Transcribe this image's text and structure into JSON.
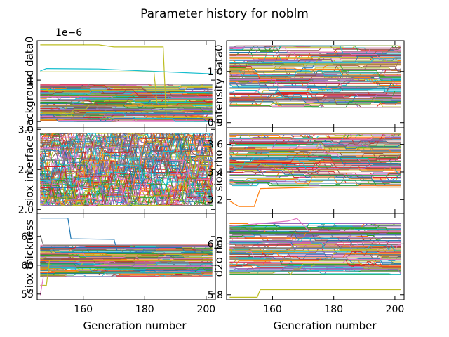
{
  "title": "Parameter history for noblm",
  "xlabel": "Generation number",
  "series_colors": [
    "#1f77b4",
    "#ff7f0e",
    "#2ca02c",
    "#d62728",
    "#9467bd",
    "#8c564b",
    "#e377c2",
    "#7f7f7f",
    "#bcbd22",
    "#17becf"
  ],
  "chart_data": [
    {
      "type": "line",
      "panel": "top-left",
      "ylabel": "background data0",
      "offset_label": "1e−6",
      "xlim": [
        145,
        203
      ],
      "ylim": [
        -0.15,
        1.95
      ],
      "xticks": [
        160,
        180,
        200
      ],
      "xtick_labels": [
        "",
        "",
        ""
      ],
      "yticks": [
        0,
        1
      ],
      "ytick_labels": [
        "0",
        "1"
      ],
      "n_series": 120,
      "band": {
        "min": 0.0,
        "max": 0.9
      },
      "highlight_series": [
        {
          "color": "#bcbd22",
          "values": [
            [
              146,
              1.85
            ],
            [
              165,
              1.85
            ],
            [
              170,
              1.8
            ],
            [
              186,
              1.8
            ],
            [
              187,
              0.1
            ],
            [
              202,
              0.1
            ]
          ]
        },
        {
          "color": "#17becf",
          "values": [
            [
              146,
              1.22
            ],
            [
              148,
              1.28
            ],
            [
              165,
              1.27
            ],
            [
              202,
              1.15
            ]
          ]
        },
        {
          "color": "#bcbd22",
          "values": [
            [
              146,
              1.2
            ],
            [
              183,
              1.2
            ],
            [
              184,
              0.45
            ],
            [
              202,
              0.45
            ]
          ]
        }
      ]
    },
    {
      "type": "line",
      "panel": "top-right",
      "ylabel": "intensity data0",
      "xlim": [
        145,
        203
      ],
      "ylim": [
        0.89,
        1.06
      ],
      "xticks": [
        160,
        180,
        200
      ],
      "xtick_labels": [
        "",
        "",
        ""
      ],
      "yticks": [
        0.9,
        1.0
      ],
      "ytick_labels": [
        "0.9",
        "1.0"
      ],
      "n_series": 120,
      "band": {
        "min": 0.93,
        "max": 1.05
      }
    },
    {
      "type": "line",
      "panel": "middle-left",
      "ylabel": "siox interface",
      "xlim": [
        145,
        203
      ],
      "ylim": [
        1.95,
        3.02
      ],
      "xticks": [
        160,
        180,
        200
      ],
      "xtick_labels": [
        "",
        "",
        ""
      ],
      "yticks": [
        2.0,
        2.5,
        3.0
      ],
      "ytick_labels": [
        "2.0",
        "2.5",
        "3.0"
      ],
      "n_series": 120,
      "band": {
        "min": 2.05,
        "max": 2.95
      }
    },
    {
      "type": "line",
      "panel": "middle-right",
      "ylabel": "siox rho",
      "xlim": [
        145,
        203
      ],
      "ylim": [
        3.1,
        3.72
      ],
      "xticks": [
        160,
        180,
        200
      ],
      "xtick_labels": [
        "",
        "",
        ""
      ],
      "yticks": [
        3.2,
        3.4,
        3.6
      ],
      "ytick_labels": [
        "3.2",
        "3.4",
        "3.6"
      ],
      "n_series": 120,
      "band": {
        "min": 3.3,
        "max": 3.68
      },
      "highlight_series": [
        {
          "color": "#ff7f0e",
          "values": [
            [
              146,
              3.19
            ],
            [
              149,
              3.15
            ],
            [
              154,
              3.15
            ],
            [
              156,
              3.28
            ],
            [
              175,
              3.29
            ],
            [
              202,
              3.29
            ]
          ]
        }
      ]
    },
    {
      "type": "line",
      "panel": "bottom-left",
      "ylabel": "siox thickness",
      "xlim": [
        145,
        203
      ],
      "ylim": [
        54,
        69
      ],
      "xticks": [
        160,
        180,
        200
      ],
      "xtick_labels": [
        "160",
        "180",
        "200"
      ],
      "yticks": [
        55,
        60,
        65
      ],
      "ytick_labels": [
        "55",
        "60",
        "65"
      ],
      "n_series": 120,
      "band": {
        "min": 58,
        "max": 63.5
      },
      "highlight_series": [
        {
          "color": "#1f77b4",
          "values": [
            [
              146,
              68.2
            ],
            [
              155,
              68.2
            ],
            [
              156,
              64.6
            ],
            [
              170,
              64.5
            ],
            [
              171,
              62.5
            ],
            [
              202,
              62.5
            ]
          ]
        },
        {
          "color": "#7f7f7f",
          "values": [
            [
              146,
              65.2
            ],
            [
              147,
              63.5
            ],
            [
              202,
              63.4
            ]
          ]
        },
        {
          "color": "#bcbd22",
          "values": [
            [
              146,
              56.5
            ],
            [
              148,
              56.5
            ],
            [
              149,
              60.8
            ],
            [
              202,
              60.8
            ]
          ]
        },
        {
          "color": "#e377c2",
          "values": [
            [
              146,
              54.8
            ],
            [
              147,
              58.0
            ],
            [
              202,
              58.0
            ]
          ]
        }
      ]
    },
    {
      "type": "line",
      "panel": "bottom-right",
      "ylabel": "d2o rho",
      "xlim": [
        145,
        203
      ],
      "ylim": [
        5.78,
        6.12
      ],
      "xticks": [
        160,
        180,
        200
      ],
      "xtick_labels": [
        "160",
        "180",
        "200"
      ],
      "yticks": [
        5.8,
        6.0
      ],
      "ytick_labels": [
        "5.8",
        "6.0"
      ],
      "n_series": 120,
      "band": {
        "min": 5.88,
        "max": 6.08
      },
      "highlight_series": [
        {
          "color": "#bcbd22",
          "values": [
            [
              146,
              5.79
            ],
            [
              155,
              5.79
            ],
            [
              156,
              5.82
            ],
            [
              202,
              5.82
            ]
          ]
        },
        {
          "color": "#e377c2",
          "values": [
            [
              146,
              6.07
            ],
            [
              165,
              6.09
            ],
            [
              168,
              6.1
            ],
            [
              172,
              6.05
            ],
            [
              202,
              6.05
            ]
          ]
        }
      ]
    }
  ]
}
